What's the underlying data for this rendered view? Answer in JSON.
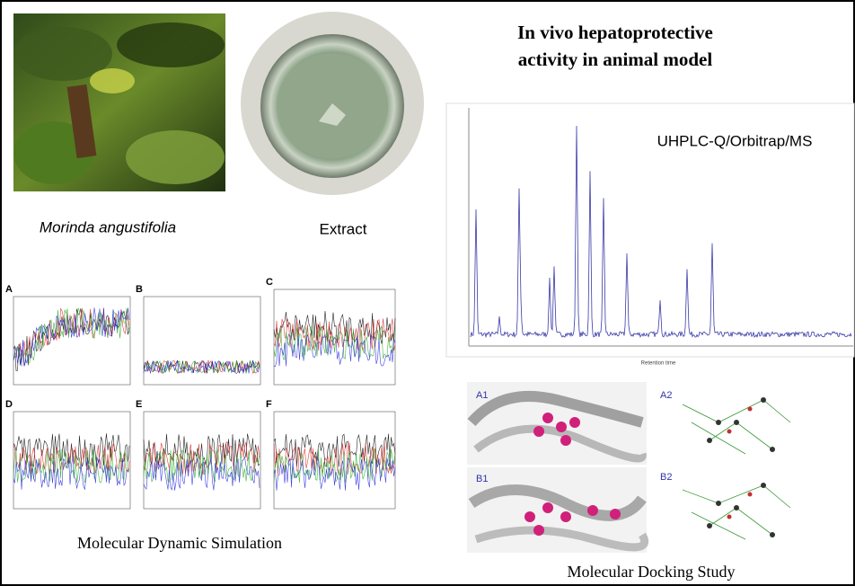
{
  "header": {
    "title": [
      "In vivo hepatoprotective",
      "activity in animal model"
    ]
  },
  "photos": {
    "plant": "Morinda angustifolia",
    "extract": "Extract"
  },
  "chromatogram": {
    "label": "UHPLC-Q/Orbitrap/MS",
    "x_label": "Retention time"
  },
  "simulation": {
    "panels": [
      "A",
      "B",
      "C",
      "D",
      "E",
      "F"
    ],
    "caption": "Molecular Dynamic Simulation"
  },
  "docking": {
    "panels": [
      "A1",
      "A2",
      "B1",
      "B2"
    ],
    "caption": "Molecular Docking Study"
  }
}
